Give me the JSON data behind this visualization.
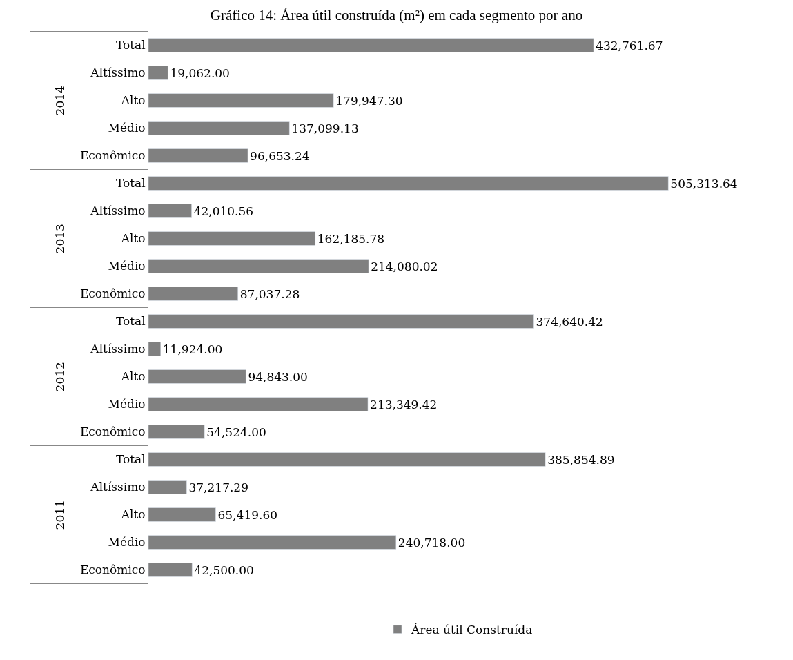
{
  "chart_data": {
    "type": "bar",
    "orientation": "horizontal",
    "title": "Gráfico 14: Área útil construída (m²) em cada segmento por ano",
    "categories": [
      "Total",
      "Altíssimo",
      "Alto",
      "Médio",
      "Econômico",
      "Total",
      "Altíssimo",
      "Alto",
      "Médio",
      "Econômico",
      "Total",
      "Altíssimo",
      "Alto",
      "Médio",
      "Econômico",
      "Total",
      "Altíssimo",
      "Alto",
      "Médio",
      "Econômico"
    ],
    "series": [
      {
        "name": "Área útil Construída",
        "color": "#808080",
        "values": [
          432761.67,
          19062.0,
          179947.3,
          137099.13,
          96653.24,
          505313.64,
          42010.56,
          162185.78,
          214080.02,
          87037.28,
          374640.42,
          11924.0,
          94843.0,
          213349.42,
          54524.0,
          385854.89,
          37217.29,
          65419.6,
          240718.0,
          42500.0
        ],
        "value_labels": [
          "432,761.67",
          "19,062.00",
          "179,947.30",
          "137,099.13",
          "96,653.24",
          "505,313.64",
          "42,010.56",
          "162,185.78",
          "214,080.02",
          "87,037.28",
          "374,640.42",
          "11,924.00",
          "94,843.00",
          "213,349.42",
          "54,524.00",
          "385,854.89",
          "37,217.29",
          "65,419.60",
          "240,718.00",
          "42,500.00"
        ]
      }
    ],
    "annotations": [
      "2014",
      "2013",
      "2012",
      "2011"
    ],
    "legend": "bottom",
    "tick_labels": "y"
  }
}
